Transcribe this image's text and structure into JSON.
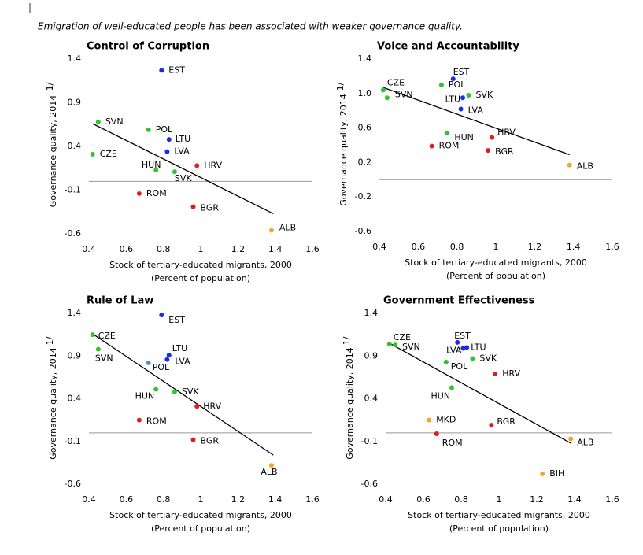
{
  "caption": "Emigration of well-educated people has been associated with weaker governance quality.",
  "chart_data": [
    {
      "type": "scatter",
      "title": "Control of Corruption",
      "x_label": "Stock of tertiary-educated migrants, 2000",
      "x_label_2": "(Percent of population)",
      "y_label": "Governance quality, 2014",
      "y_label_note": "1/",
      "xlim": [
        0.4,
        1.6
      ],
      "xticks": [
        0.4,
        0.6,
        0.8,
        1.0,
        1.2,
        1.4,
        1.6
      ],
      "ylim": [
        -0.6,
        1.4
      ],
      "yticks": [
        1.4,
        0.9,
        0.4,
        -0.1,
        -0.6
      ],
      "labels": [
        "EST",
        "SVN",
        "POL",
        "LTU",
        "LVA",
        "CZE",
        "HUN",
        "SVK",
        "HRV",
        "ROM",
        "BGR",
        "ALB"
      ],
      "x": [
        0.79,
        0.45,
        0.72,
        0.83,
        0.82,
        0.42,
        0.76,
        0.86,
        0.98,
        0.67,
        0.96,
        1.38
      ],
      "values": [
        1.27,
        0.68,
        0.59,
        0.48,
        0.34,
        0.31,
        0.13,
        0.11,
        0.18,
        -0.14,
        -0.29,
        -0.56
      ],
      "colors": [
        "#1a2ee0",
        "#2ec42e",
        "#2ec42e",
        "#1a2ee0",
        "#1a2ee0",
        "#2ec42e",
        "#2ec42e",
        "#2ec42e",
        "#e01c1c",
        "#e01c1c",
        "#e01c1c",
        "#f5a623"
      ],
      "trend_line": {
        "x": [
          0.42,
          1.39
        ],
        "values": [
          0.66,
          -0.37
        ]
      }
    },
    {
      "type": "scatter",
      "title": "Voice and Accountability",
      "x_label": "Stock of tertiary-educated migrants, 2000",
      "x_label_2": "(Percent of population)",
      "y_label": "Governance quality, 2014",
      "y_label_note": "1/",
      "xlim": [
        0.4,
        1.6
      ],
      "xticks": [
        0.4,
        0.6,
        0.8,
        1.0,
        1.2,
        1.4,
        1.6
      ],
      "ylim": [
        -0.6,
        1.4
      ],
      "yticks": [
        1.4,
        {
          "value": 1,
          "label": "1.0"
        },
        0.6,
        0.2,
        -0.2,
        -0.6
      ],
      "labels": [
        "EST",
        "CZE",
        "SVN",
        "POL",
        "LTU",
        "SVK",
        "LVA",
        "HUN",
        "HRV",
        "ROM",
        "BGR",
        "ALB"
      ],
      "x": [
        0.78,
        0.42,
        0.44,
        0.72,
        0.83,
        0.86,
        0.82,
        0.75,
        0.98,
        0.67,
        0.96,
        1.38
      ],
      "values": [
        1.17,
        1.04,
        0.95,
        1.1,
        0.95,
        0.98,
        0.82,
        0.54,
        0.49,
        0.39,
        0.34,
        0.17
      ],
      "colors": [
        "#1a2ee0",
        "#2ec42e",
        "#2ec42e",
        "#2ec42e",
        "#1a2ee0",
        "#2ec42e",
        "#1a2ee0",
        "#2ec42e",
        "#e01c1c",
        "#e01c1c",
        "#e01c1c",
        "#f5a623"
      ],
      "trend_line": {
        "x": [
          0.42,
          1.38
        ],
        "values": [
          1.07,
          0.29
        ]
      }
    },
    {
      "type": "scatter",
      "title": "Rule of Law",
      "x_label": "Stock of tertiary-educated migrants, 2000",
      "x_label_2": "(Percent of population)",
      "y_label": "Governance quality, 2014",
      "y_label_note": "1/",
      "xlim": [
        0.4,
        1.6
      ],
      "xticks": [
        0.4,
        0.6,
        0.8,
        1.0,
        1.2,
        1.4,
        1.6
      ],
      "ylim": [
        -0.6,
        1.4
      ],
      "yticks": [
        1.4,
        0.9,
        0.4,
        -0.1,
        -0.6
      ],
      "labels": [
        "EST",
        "CZE",
        "SVN",
        "LTU",
        "LVA",
        "POL",
        "HUN",
        "SVK",
        "HRV",
        "ROM",
        "BGR",
        "ALB"
      ],
      "x": [
        0.79,
        0.42,
        0.45,
        0.83,
        0.82,
        0.72,
        0.76,
        0.86,
        0.98,
        0.67,
        0.96,
        1.38
      ],
      "values": [
        1.38,
        1.15,
        0.98,
        0.91,
        0.86,
        0.82,
        0.51,
        0.48,
        0.31,
        0.15,
        -0.08,
        -0.38
      ],
      "colors": [
        "#1a2ee0",
        "#2ec42e",
        "#2ec42e",
        "#1a2ee0",
        "#1a2ee0",
        "#5b8bc0",
        "#2ec42e",
        "#2ec42e",
        "#e01c1c",
        "#e01c1c",
        "#e01c1c",
        "#f5a623"
      ],
      "trend_line": {
        "x": [
          0.42,
          1.39
        ],
        "values": [
          1.16,
          -0.26
        ]
      }
    },
    {
      "type": "scatter",
      "title": "Government Effectiveness",
      "x_label": "Stock of tertiary-educated migrants, 2000",
      "x_label_2": "(Percent of population)",
      "y_label": "Governance quality, 2014",
      "y_label_note": "1/",
      "xlim": [
        0.4,
        1.6
      ],
      "xticks": [
        0.4,
        0.6,
        0.8,
        1.0,
        1.2,
        1.4,
        1.6
      ],
      "ylim": [
        -0.6,
        1.4
      ],
      "yticks": [
        1.4,
        0.9,
        0.4,
        -0.1,
        -0.6
      ],
      "labels": [
        "CZE",
        "SVN",
        "EST",
        "LTU",
        "LVA",
        "POL",
        "SVK",
        "HRV",
        "HUN",
        "MKD",
        "BGR",
        "ROM",
        "ALB",
        "BIH"
      ],
      "x": [
        0.42,
        0.45,
        0.78,
        0.83,
        0.81,
        0.72,
        0.86,
        0.98,
        0.75,
        0.63,
        0.96,
        0.67,
        1.38,
        1.23
      ],
      "values": [
        1.04,
        1.03,
        1.06,
        1.0,
        0.99,
        0.83,
        0.87,
        0.69,
        0.53,
        0.15,
        0.09,
        -0.01,
        -0.07,
        -0.48
      ],
      "colors": [
        "#2ec42e",
        "#2ec42e",
        "#1a2ee0",
        "#1a2ee0",
        "#1a2ee0",
        "#2ec42e",
        "#2ec42e",
        "#e01c1c",
        "#2ec42e",
        "#f5a623",
        "#e01c1c",
        "#e01c1c",
        "#f5a623",
        "#f5a623"
      ],
      "trend_line": {
        "x": [
          0.42,
          1.38
        ],
        "values": [
          1.05,
          -0.12
        ]
      }
    }
  ]
}
